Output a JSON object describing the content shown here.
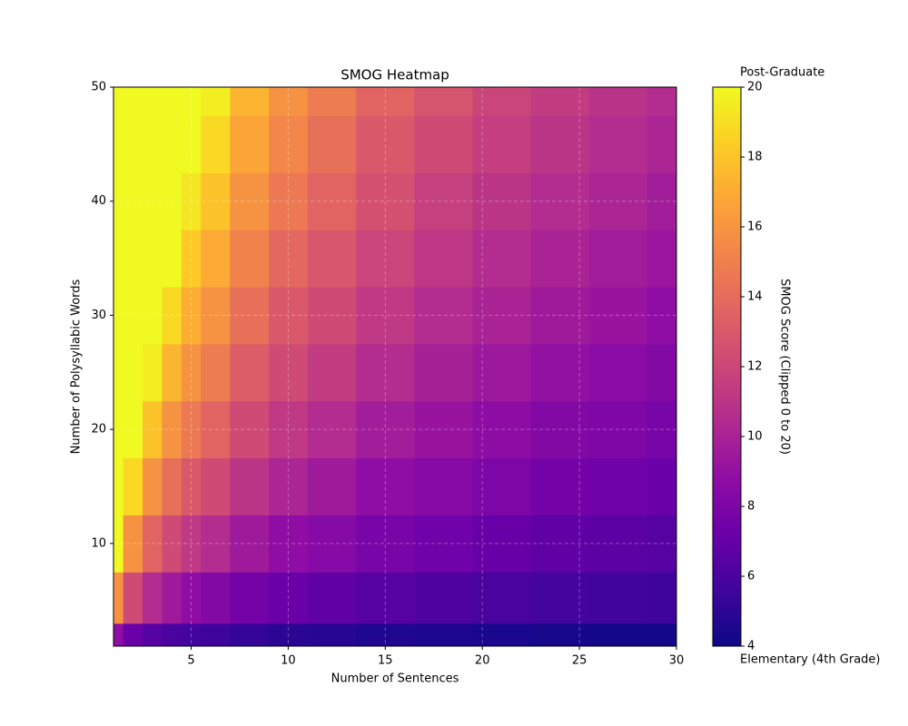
{
  "chart_data": {
    "type": "heatmap",
    "title": "SMOG Heatmap",
    "x_label": "Number of Sentences",
    "y_label": "Number of Polysyllabic Words",
    "colorbar_label": "SMOG Score (Clipped 0 to 20)",
    "colorbar_top_label": "Post-Graduate",
    "colorbar_bottom_label": "Elementary (4th Grade)",
    "colormap": "plasma",
    "grid": true,
    "x": [
      1,
      2,
      3,
      4,
      5,
      6,
      8,
      10,
      12,
      15,
      18,
      21,
      24,
      27,
      30
    ],
    "y": [
      1,
      5,
      10,
      15,
      20,
      25,
      30,
      35,
      40,
      45,
      50
    ],
    "z": [
      [
        8.8,
        7.2,
        6.4,
        6.0,
        5.7,
        5.5,
        5.2,
        4.9,
        4.8,
        4.6,
        4.5,
        4.4,
        4.3,
        4.2,
        4.2
      ],
      [
        15.9,
        12.2,
        10.5,
        9.5,
        8.8,
        8.3,
        7.6,
        7.2,
        6.8,
        6.4,
        6.1,
        5.9,
        5.7,
        5.6,
        5.5
      ],
      [
        20,
        15.9,
        13.6,
        12.2,
        11.2,
        10.5,
        9.5,
        8.8,
        8.4,
        7.8,
        7.4,
        7.1,
        6.8,
        6.6,
        6.4
      ],
      [
        20,
        18.8,
        15.9,
        14.2,
        13.0,
        12.2,
        11.0,
        10.1,
        9.5,
        8.8,
        8.4,
        8.0,
        7.6,
        7.4,
        7.2
      ],
      [
        20,
        20,
        17.9,
        15.9,
        14.6,
        13.6,
        12.2,
        11.2,
        10.5,
        9.7,
        9.2,
        8.7,
        8.3,
        8.1,
        7.8
      ],
      [
        20,
        20,
        19.6,
        17.4,
        15.9,
        14.8,
        13.2,
        12.2,
        11.4,
        10.5,
        9.9,
        9.4,
        9.0,
        8.6,
        8.3
      ],
      [
        20,
        20,
        20,
        18.8,
        17.1,
        15.9,
        14.2,
        13.0,
        12.2,
        11.2,
        10.5,
        10.0,
        9.5,
        9.2,
        8.8
      ],
      [
        20,
        20,
        20,
        20,
        18.2,
        16.9,
        15.1,
        13.8,
        12.9,
        11.9,
        11.1,
        10.5,
        10.0,
        9.6,
        9.3
      ],
      [
        20,
        20,
        20,
        20,
        19.3,
        17.9,
        15.9,
        14.6,
        13.6,
        12.5,
        11.6,
        11.0,
        10.5,
        10.1,
        9.7
      ],
      [
        20,
        20,
        20,
        20,
        20,
        18.8,
        16.7,
        15.3,
        14.2,
        13.0,
        12.2,
        11.5,
        11.0,
        10.5,
        10.1
      ],
      [
        20,
        20,
        20,
        20,
        20,
        19.6,
        17.4,
        15.9,
        14.8,
        13.6,
        12.7,
        11.9,
        11.4,
        10.9,
        10.5
      ]
    ],
    "xlim": [
      1,
      30
    ],
    "ylim": [
      1,
      50
    ],
    "xticks": [
      5,
      10,
      15,
      20,
      25,
      30
    ],
    "yticks": [
      10,
      20,
      30,
      40,
      50
    ],
    "clim": [
      4,
      20
    ],
    "cticks": [
      4,
      6,
      8,
      10,
      12,
      14,
      16,
      18,
      20
    ]
  }
}
